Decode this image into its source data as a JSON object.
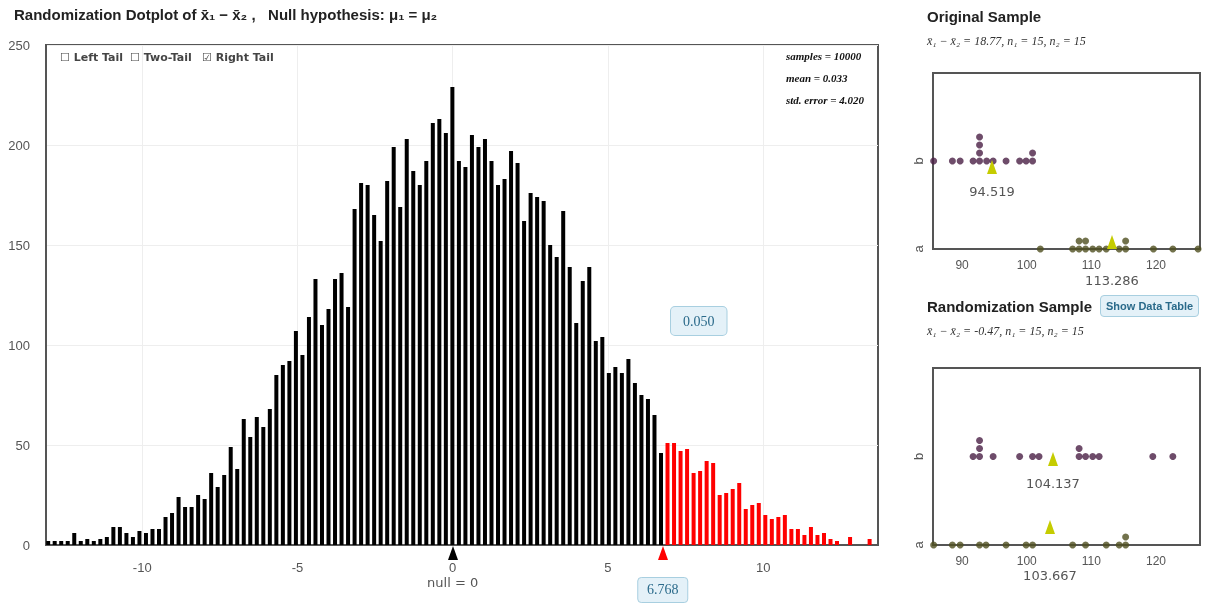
{
  "chart_data": [
    {
      "type": "bar",
      "title": "Randomization Dotplot of x̄₁ − x̄₂ ,   Null hypothesis: μ₁ = μ₂",
      "xlim": [
        -13.1,
        13.7
      ],
      "xticks": [
        -10,
        -5,
        0,
        5,
        10
      ],
      "ylim": [
        0,
        250
      ],
      "yticks": [
        0,
        50,
        100,
        150,
        200,
        250
      ],
      "grid": true,
      "annotations": [
        "☐ Left Tail",
        "☐ Two-Tail",
        "☑ Right Tail",
        "samples = 10000",
        "mean = 0.033",
        "std. error = 4.020",
        "0.050",
        {
          "text": "null = 0",
          "x": 0,
          "y": 0
        },
        {
          "text": "6.768",
          "x": 6.768,
          "y": 0
        }
      ],
      "series": [
        {
          "color": "#000000",
          "x": [
            -13.03,
            -12.82,
            -12.61,
            -12.4,
            -12.19,
            -11.98,
            -11.77,
            -11.56,
            -11.35,
            -11.14,
            -10.93,
            -10.72,
            -10.51,
            -10.3,
            -10.09,
            -9.88,
            -9.67,
            -9.46,
            -9.25,
            -9.04,
            -8.83,
            -8.62,
            -8.41,
            -8.2,
            -7.99,
            -7.78,
            -7.57,
            -7.36,
            -7.15,
            -6.94,
            -6.73,
            -6.52,
            -6.31,
            -6.1,
            -5.89,
            -5.68,
            -5.47,
            -5.26,
            -5.05,
            -4.84,
            -4.63,
            -4.42,
            -4.21,
            -4.0,
            -3.79,
            -3.58,
            -3.37,
            -3.16,
            -2.95,
            -2.74,
            -2.53,
            -2.32,
            -2.11,
            -1.9,
            -1.69,
            -1.48,
            -1.27,
            -1.06,
            -0.85,
            -0.64,
            -0.43,
            -0.22,
            -0.01,
            0.2,
            0.41,
            0.62,
            0.83,
            1.04,
            1.25,
            1.46,
            1.67,
            1.88,
            2.09,
            2.3,
            2.51,
            2.72,
            2.93,
            3.14,
            3.35,
            3.56,
            3.77,
            3.98,
            4.19,
            4.4,
            4.61,
            4.82,
            5.03,
            5.24,
            5.45,
            5.66,
            5.87,
            6.08,
            6.29,
            6.5,
            6.71
          ],
          "values": [
            2,
            2,
            2,
            2,
            6,
            2,
            3,
            2,
            3,
            4,
            9,
            9,
            6,
            4,
            7,
            6,
            8,
            8,
            14,
            16,
            24,
            19,
            19,
            25,
            23,
            36,
            29,
            35,
            49,
            38,
            63,
            54,
            64,
            59,
            68,
            85,
            90,
            92,
            107,
            95,
            114,
            133,
            110,
            118,
            133,
            136,
            119,
            168,
            181,
            180,
            165,
            152,
            182,
            199,
            169,
            203,
            187,
            180,
            192,
            211,
            213,
            206,
            229,
            192,
            189,
            205,
            199,
            203,
            192,
            180,
            183,
            197,
            191,
            162,
            176,
            174,
            172,
            150,
            144,
            167,
            139,
            111,
            132,
            139,
            102,
            104,
            86,
            89,
            86,
            93,
            81,
            75,
            73,
            65,
            46
          ]
        },
        {
          "color": "#ff0000",
          "x": [
            6.92,
            7.13,
            7.34,
            7.55,
            7.76,
            7.97,
            8.18,
            8.39,
            8.6,
            8.81,
            9.02,
            9.23,
            9.44,
            9.65,
            9.86,
            10.07,
            10.28,
            10.49,
            10.7,
            10.91,
            11.12,
            11.33,
            11.54,
            11.75,
            11.96,
            12.17,
            12.38,
            12.8,
            13.43
          ],
          "values": [
            51,
            51,
            47,
            48,
            36,
            37,
            42,
            41,
            25,
            26,
            28,
            31,
            18,
            20,
            21,
            15,
            13,
            14,
            15,
            8,
            8,
            5,
            9,
            5,
            6,
            3,
            2,
            4,
            3
          ]
        }
      ]
    },
    {
      "type": "scatter",
      "orientation": "horizontal",
      "title": "Original Sample",
      "subtitle": "x̄₁ − x̄₂ = 18.77, n₁ = 15, n₂ = 15",
      "categories": [
        "b",
        "a"
      ],
      "xlim": [
        85.5,
        126.8
      ],
      "xticks": [
        90,
        100,
        110,
        120
      ],
      "marker": "circle",
      "annotations": [
        "94.519",
        "113.286"
      ],
      "series": [
        {
          "color": "#4a1f45",
          "x": [
            "b",
            "b",
            "b",
            "b",
            "b",
            "b",
            "b",
            "b",
            "b",
            "b",
            "b",
            "b",
            "b",
            "b",
            "b"
          ],
          "values": [
            85.6,
            88.5,
            89.7,
            91.7,
            92.7,
            92.7,
            92.7,
            92.7,
            93.8,
            94.8,
            96.8,
            98.9,
            99.9,
            100.9,
            100.9
          ]
        },
        {
          "color": "#4f4f1f",
          "x": [
            "a",
            "a",
            "a",
            "a",
            "a",
            "a",
            "a",
            "a",
            "a",
            "a",
            "a",
            "a",
            "a",
            "a",
            "a"
          ],
          "values": [
            102.1,
            107.1,
            108.1,
            108.1,
            109.1,
            109.1,
            110.2,
            111.2,
            112.3,
            114.3,
            115.3,
            115.3,
            119.6,
            122.6,
            126.5
          ]
        }
      ]
    },
    {
      "type": "scatter",
      "orientation": "horizontal",
      "title": "Randomization Sample",
      "subtitle": "x̄₁ − x̄₂ = -0.47, n₁ = 15, n₂ = 15",
      "categories": [
        "b",
        "a"
      ],
      "xlim": [
        85.5,
        126.8
      ],
      "xticks": [
        90,
        100,
        110,
        120
      ],
      "marker": "circle",
      "annotations": [
        "Show Data Table",
        "104.137",
        "103.667"
      ],
      "series": [
        {
          "color": "#4a1f45",
          "x": [
            "b",
            "b",
            "b",
            "b",
            "b",
            "b",
            "b",
            "b",
            "b",
            "b",
            "b",
            "b",
            "b",
            "b",
            "b"
          ],
          "values": [
            91.7,
            92.7,
            92.7,
            92.7,
            94.8,
            98.9,
            100.9,
            101.9,
            108.1,
            108.1,
            109.1,
            110.2,
            111.2,
            119.5,
            122.6
          ]
        },
        {
          "color": "#4f4f1f",
          "x": [
            "a",
            "a",
            "a",
            "a",
            "a",
            "a",
            "a",
            "a",
            "a",
            "a",
            "a",
            "a",
            "a",
            "a"
          ],
          "values": [
            85.6,
            88.5,
            89.7,
            92.7,
            93.7,
            96.8,
            99.9,
            100.9,
            107.1,
            109.1,
            112.3,
            114.3,
            115.3,
            115.3
          ]
        }
      ]
    }
  ]
}
